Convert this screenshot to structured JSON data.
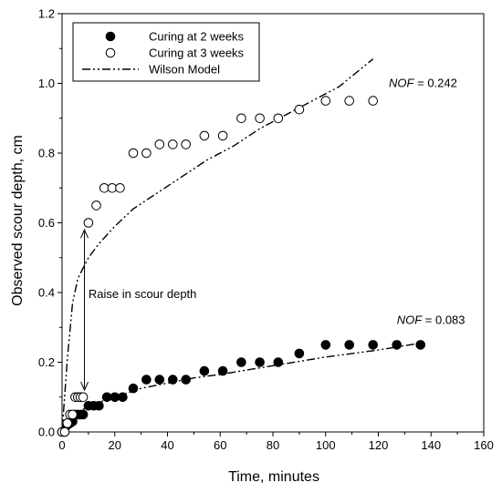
{
  "chart_data": {
    "type": "scatter",
    "xlabel": "Time, minutes",
    "ylabel": "Observed scour depth, cm",
    "xlim": [
      0,
      160
    ],
    "ylim": [
      0,
      1.2
    ],
    "xticks": [
      "0",
      "20",
      "40",
      "60",
      "80",
      "100",
      "120",
      "140",
      "160"
    ],
    "yticks": [
      "0.0",
      "0.2",
      "0.4",
      "0.6",
      "0.8",
      "1.0",
      "1.2"
    ],
    "grid": false,
    "legend_position": "top-left",
    "series": [
      {
        "name": "Curing at 2 weeks",
        "marker": "filled-circle",
        "color": "#000000",
        "x": [
          0,
          1,
          2,
          3,
          4,
          5,
          6,
          7,
          8,
          10,
          12,
          14,
          17,
          20,
          23,
          27,
          32,
          37,
          42,
          47,
          54,
          61,
          68,
          75,
          82,
          90,
          100,
          109,
          118,
          127,
          136
        ],
        "y": [
          0,
          0,
          0.02,
          0.025,
          0.03,
          0.05,
          0.05,
          0.05,
          0.05,
          0.075,
          0.075,
          0.075,
          0.1,
          0.1,
          0.1,
          0.125,
          0.15,
          0.15,
          0.15,
          0.15,
          0.175,
          0.175,
          0.2,
          0.2,
          0.2,
          0.225,
          0.25,
          0.25,
          0.25,
          0.25,
          0.25
        ]
      },
      {
        "name": "Curing at 3 weeks",
        "marker": "open-circle",
        "color": "#000000",
        "x": [
          0,
          1,
          2,
          3,
          4,
          5,
          6,
          7,
          8,
          10,
          13,
          16,
          19,
          22,
          27,
          32,
          37,
          42,
          47,
          54,
          61,
          68,
          75,
          82,
          90,
          100,
          109,
          118
        ],
        "y": [
          0,
          0,
          0.025,
          0.05,
          0.05,
          0.1,
          0.1,
          0.1,
          0.1,
          0.6,
          0.65,
          0.7,
          0.7,
          0.7,
          0.8,
          0.8,
          0.825,
          0.825,
          0.825,
          0.85,
          0.85,
          0.9,
          0.9,
          0.9,
          0.925,
          0.95,
          0.95,
          0.95
        ]
      },
      {
        "name": "Wilson Model",
        "line": "dash-dot-dot",
        "color": "#000000",
        "curves": [
          {
            "x": [
              0,
              2,
              4,
              6,
              8,
              10,
              14,
              20,
              27,
              35,
              45,
              55,
              65,
              75,
              85,
              95,
              105,
              118
            ],
            "y": [
              0,
              0.21,
              0.37,
              0.44,
              0.47,
              0.5,
              0.54,
              0.59,
              0.64,
              0.68,
              0.73,
              0.78,
              0.82,
              0.87,
              0.91,
              0.95,
              0.99,
              1.07
            ]
          },
          {
            "x": [
              0,
              1,
              2,
              4,
              6,
              8,
              12,
              20,
              30,
              40,
              50,
              60,
              80,
              100,
              120,
              136
            ],
            "y": [
              0,
              0.01,
              0.02,
              0.04,
              0.055,
              0.065,
              0.08,
              0.1,
              0.125,
              0.14,
              0.155,
              0.165,
              0.19,
              0.215,
              0.235,
              0.255
            ]
          }
        ]
      }
    ],
    "annotations": [
      {
        "id": "nof-3wk",
        "label": "NOF",
        "value": " = 0.242",
        "x": 124,
        "y": 1.0
      },
      {
        "id": "nof-2wk",
        "label": "NOF",
        "value": " = 0.083",
        "x": 127,
        "y": 0.32
      },
      {
        "id": "raise",
        "text": "Raise in scour depth",
        "x": 10,
        "y": 0.395
      }
    ],
    "arrow": {
      "x": 8.5,
      "y_top": 0.58,
      "y_bottom": 0.12
    }
  }
}
